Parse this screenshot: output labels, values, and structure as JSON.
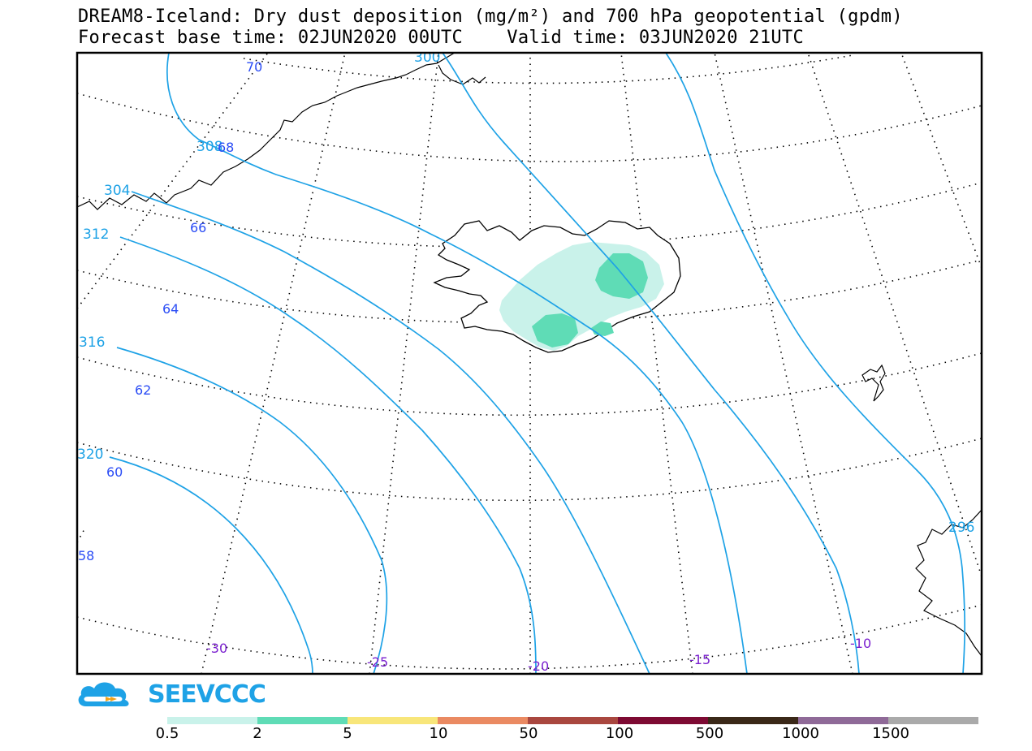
{
  "title": {
    "line1": "DREAM8-Iceland: Dry dust deposition (mg/m²) and 700 hPa geopotential (gpdm)",
    "line2_base_label": "Forecast base time:",
    "line2_base_value": "02JUN2020 00UTC",
    "line2_valid_label": "Valid time:",
    "line2_valid_value": "03JUN2020 21UTC"
  },
  "map": {
    "latitude_labels": [
      "70",
      "68",
      "66",
      "64",
      "62",
      "60",
      "58"
    ],
    "longitude_labels": [
      "-30",
      "-25",
      "-20",
      "-15",
      "-10"
    ],
    "contour_labels": [
      "300",
      "304",
      "308",
      "312",
      "316",
      "320",
      "296"
    ],
    "colors": {
      "contour": "#1ea2e6",
      "lat_label": "#2a4cf5",
      "lon_label": "#7a1fcf",
      "dust_low": "#c9f2ea",
      "dust_mid": "#5fdcb6"
    }
  },
  "logo": {
    "text": "SEEVCCC"
  },
  "colorbar": {
    "labels": [
      "0.5",
      "2",
      "5",
      "10",
      "50",
      "100",
      "500",
      "1000",
      "1500"
    ],
    "colors": [
      "#c9f2ea",
      "#5fdcb6",
      "#f8e67a",
      "#ea8a62",
      "#a9473f",
      "#7d0a33",
      "#3a2818",
      "#8f6a98",
      "#aaaaaa"
    ]
  }
}
